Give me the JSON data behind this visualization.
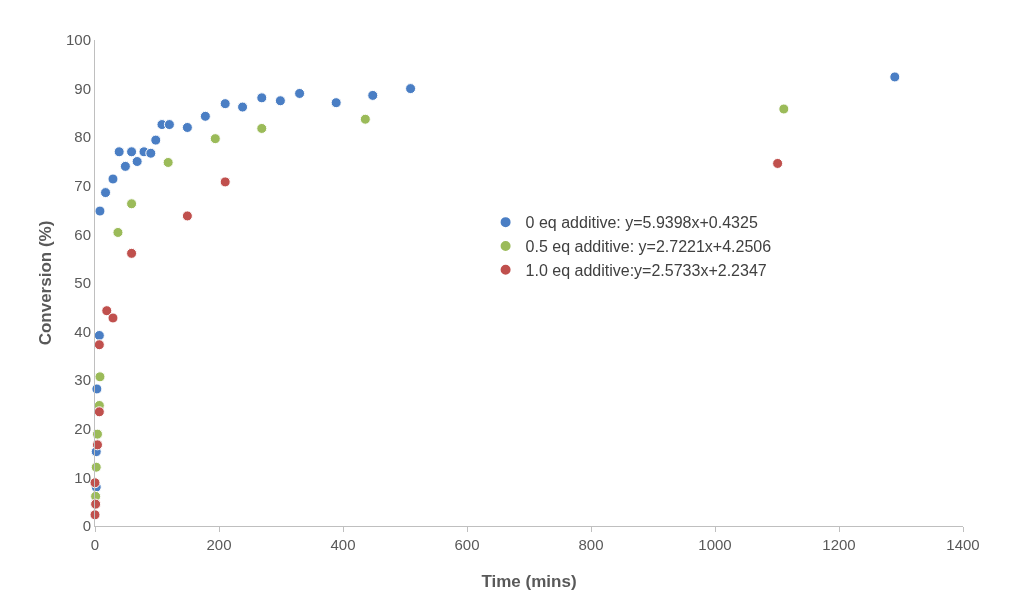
{
  "chart_data": {
    "type": "scatter",
    "xlabel": "Time (mins)",
    "ylabel": "Conversion (%)",
    "xlim": [
      0,
      1400
    ],
    "xticks": [
      0,
      200,
      400,
      600,
      800,
      1000,
      1200,
      1400
    ],
    "ylim": [
      0,
      100
    ],
    "yticks": [
      0,
      10,
      20,
      30,
      40,
      50,
      60,
      70,
      80,
      90,
      100
    ],
    "grid": false,
    "legend": "right",
    "marker": "circle",
    "series": [
      {
        "name": "0 eq additive: y=5.9398x+0.4325",
        "color": "#4a7ec4",
        "x": [
          2,
          2,
          3,
          7,
          8,
          17,
          29,
          39,
          49,
          59,
          68,
          79,
          90,
          98,
          108,
          120,
          149,
          178,
          210,
          238,
          269,
          299,
          330,
          389,
          448,
          509,
          1290
        ],
        "values": [
          8,
          15.3,
          28.2,
          39.2,
          64.8,
          68.6,
          71.4,
          77,
          74,
          77,
          75,
          77,
          76.7,
          79.4,
          82.6,
          82.6,
          82,
          84.3,
          86.9,
          86.2,
          88.1,
          87.5,
          89,
          87.1,
          88.6,
          90,
          92.4
        ]
      },
      {
        "name": "0.5 eq additive: y=2.7221x+4.2506",
        "color": "#9bbb59",
        "x": [
          1,
          2,
          4,
          7,
          8,
          37,
          59,
          118,
          194,
          269,
          436,
          1111
        ],
        "values": [
          6.1,
          12.1,
          18.9,
          24.8,
          30.7,
          60.4,
          66.3,
          74.8,
          79.7,
          81.8,
          83.7,
          85.8
        ]
      },
      {
        "name": "1.0 eq additive:y=2.5733x+2.2347",
        "color": "#c0504d",
        "x": [
          0,
          1,
          0,
          4,
          7,
          7,
          19,
          29,
          59,
          149,
          210,
          1101
        ],
        "values": [
          2.3,
          4.5,
          8.9,
          16.7,
          23.5,
          37.3,
          44.3,
          42.8,
          56.1,
          63.8,
          70.8,
          74.6
        ]
      }
    ]
  }
}
